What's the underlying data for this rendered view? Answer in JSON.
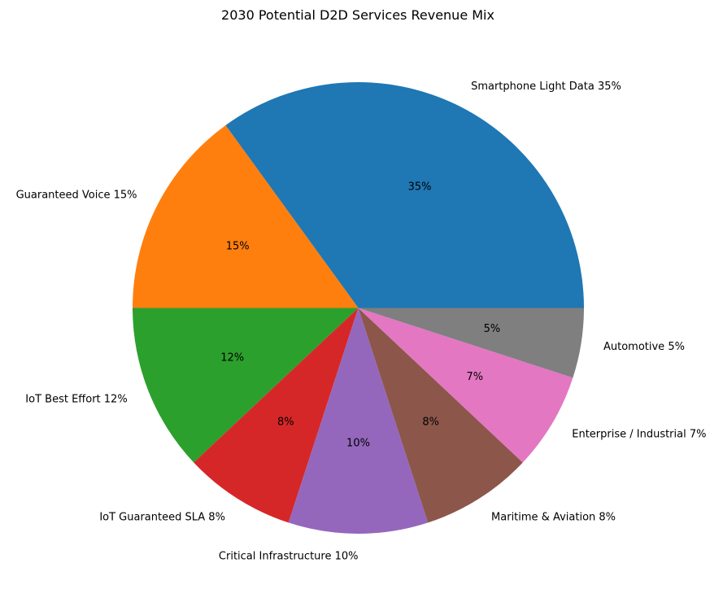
{
  "chart_data": {
    "type": "pie",
    "title": "2030 Potential D2D Services Revenue Mix",
    "slices": [
      {
        "label": "Smartphone Light Data 35%",
        "value": 35,
        "pct_label": "35%",
        "color": "#1f77b4"
      },
      {
        "label": "Guaranteed Voice 15%",
        "value": 15,
        "pct_label": "15%",
        "color": "#ff7f0e"
      },
      {
        "label": "IoT Best Effort 12%",
        "value": 12,
        "pct_label": "12%",
        "color": "#2ca02c"
      },
      {
        "label": "IoT Guaranteed SLA 8%",
        "value": 8,
        "pct_label": "8%",
        "color": "#d62728"
      },
      {
        "label": "Critical Infrastructure 10%",
        "value": 10,
        "pct_label": "10%",
        "color": "#9467bd"
      },
      {
        "label": "Maritime & Aviation 8%",
        "value": 8,
        "pct_label": "8%",
        "color": "#8c564b"
      },
      {
        "label": "Enterprise / Industrial 7%",
        "value": 7,
        "pct_label": "7%",
        "color": "#e377c2"
      },
      {
        "label": "Automotive 5%",
        "value": 5,
        "pct_label": "5%",
        "color": "#7f7f7f"
      }
    ],
    "start_angle_deg": 0,
    "direction": "counterclockwise"
  }
}
